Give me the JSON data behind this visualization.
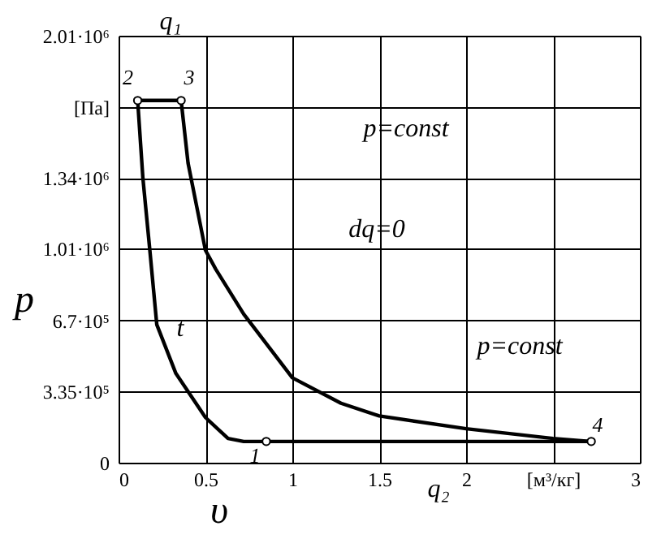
{
  "chart_data": {
    "type": "line",
    "xlabel": "υ",
    "ylabel": "p",
    "xlim": [
      0,
      3
    ],
    "xticks": [
      0,
      0.5,
      1,
      1.5,
      2,
      {
        "value": 2.5,
        "label": "[м³/кг]"
      },
      3
    ],
    "ylim": [
      0,
      2010000
    ],
    "yticks": [
      0,
      {
        "value": 335000,
        "label": "3.35·10⁵"
      },
      {
        "value": 670000,
        "label": "6.7·10⁵"
      },
      {
        "value": 1010000,
        "label": "1.01·10⁶"
      },
      {
        "value": 1340000,
        "label": "1.34·10⁶"
      },
      {
        "value": 1675000,
        "label": "[Па]"
      },
      {
        "value": 2010000,
        "label": "2.01·10⁶"
      }
    ],
    "grid": true,
    "series": [
      {
        "type": "line",
        "color": "#000000",
        "x": [
          0.11,
          0.14,
          0.18,
          0.22,
          0.33,
          0.5,
          0.63,
          0.72,
          0.85
        ],
        "values": [
          1705000,
          1340000,
          1000000,
          650000,
          420000,
          213000,
          114000,
          100000,
          100000
        ]
      },
      {
        "type": "line",
        "color": "#000000",
        "x": [
          0.11,
          0.36
        ],
        "values": [
          1705000,
          1705000
        ]
      },
      {
        "type": "line",
        "color": "#000000",
        "x": [
          0.36,
          0.4,
          0.5,
          0.56,
          0.72,
          1.0,
          1.28,
          1.5,
          2.0,
          2.5,
          2.72
        ],
        "values": [
          1705000,
          1410000,
          1000000,
          910000,
          700000,
          400000,
          280000,
          220000,
          160000,
          114000,
          100000
        ]
      },
      {
        "type": "line",
        "color": "#000000",
        "x": [
          0.85,
          2.72
        ],
        "values": [
          100000,
          100000
        ]
      },
      {
        "type": "scatter",
        "color": "#000000",
        "marker": "circle",
        "x": [
          0.85,
          0.11,
          0.36,
          2.72
        ],
        "values": [
          100000,
          1705000,
          1705000,
          100000
        ]
      }
    ],
    "annotations": [
      {
        "text": "1",
        "x": 0.85,
        "y": 100000
      },
      {
        "text": "2",
        "x": 0.11,
        "y": 1705000
      },
      {
        "text": "3",
        "x": 0.36,
        "y": 1705000
      },
      {
        "text": "4",
        "x": 2.72,
        "y": 100000
      },
      "q₁",
      "q₂",
      "p=const",
      "dq=0",
      "p=const",
      "t"
    ]
  }
}
